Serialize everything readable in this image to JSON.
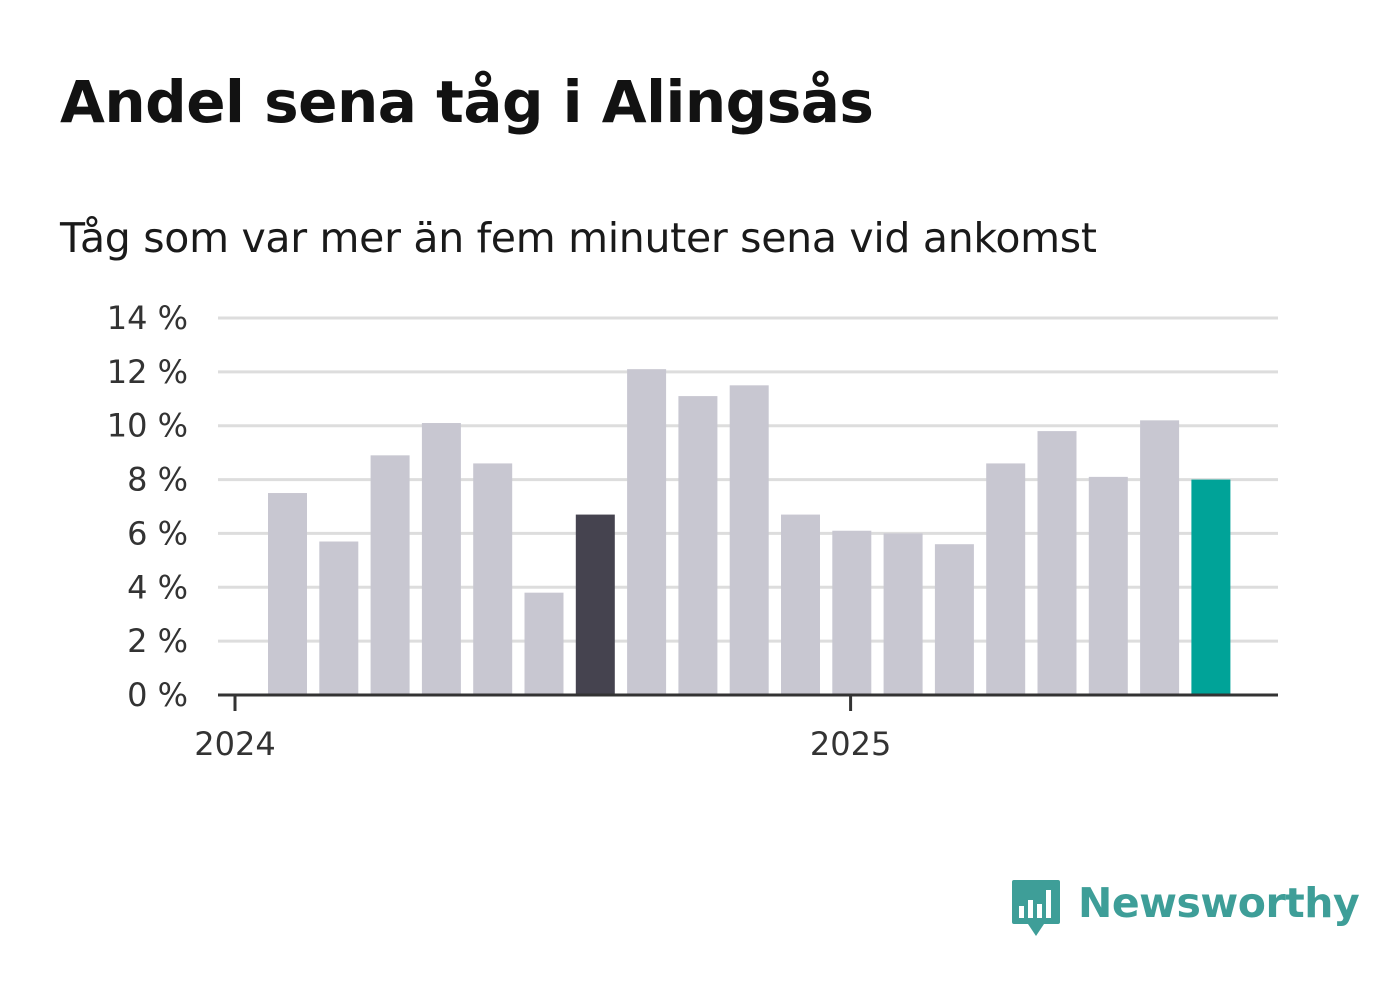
{
  "chart_data": {
    "type": "bar",
    "title": "Andel sena tåg i Alingsås",
    "subtitle": "Tåg som var mer än fem minuter sena vid ankomst",
    "xlabel": "",
    "ylabel": "",
    "categories": [
      "2024-01",
      "2024-02",
      "2024-03",
      "2024-04",
      "2024-05",
      "2024-06",
      "2024-07",
      "2024-08",
      "2024-09",
      "2024-10",
      "2024-11",
      "2024-12",
      "2025-01",
      "2025-02",
      "2025-03",
      "2025-04",
      "2025-05",
      "2025-06",
      "2025-07"
    ],
    "values": [
      7.5,
      5.7,
      8.9,
      10.1,
      8.6,
      3.8,
      6.7,
      12.1,
      11.1,
      11.5,
      6.7,
      6.1,
      6.0,
      5.6,
      8.6,
      9.8,
      8.1,
      10.2,
      8.0
    ],
    "highlight": {
      "2024-07": "#45434f",
      "2025-07": "#00a398"
    },
    "bar_color": "#c8c7d1",
    "ylim": [
      0,
      14
    ],
    "yticks": [
      0,
      2,
      4,
      6,
      8,
      10,
      12,
      14
    ],
    "ytick_suffix": " %",
    "xticks": [
      {
        "at": "2024-01",
        "label": "2024"
      },
      {
        "at": "2025-01",
        "label": "2025"
      }
    ],
    "grid": true,
    "legend": "none",
    "gridline_color": "#dddddd",
    "axis_color": "#333333"
  },
  "branding": {
    "name": "Newsworthy",
    "color": "#3e9e98",
    "icon": "bar-chart-speech-bubble-icon"
  }
}
